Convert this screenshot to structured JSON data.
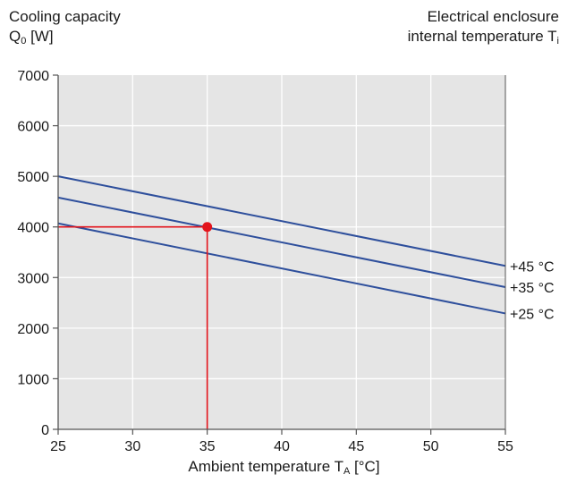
{
  "chart_data": {
    "type": "line",
    "ylabel_main": "Cooling capacity",
    "ylabel_sym": "Q",
    "ylabel_sub": "0",
    "ylabel_unit": " [W]",
    "legend_title_l1": "Electrical enclosure",
    "legend_title_l2": "internal temperature T",
    "legend_title_sub": "i",
    "xlabel_main": "Ambient temperature T",
    "xlabel_sub": "A",
    "xlabel_unit": " [°C]",
    "xlim": [
      25,
      55
    ],
    "ylim": [
      0,
      7000
    ],
    "xticks": [
      25,
      30,
      35,
      40,
      45,
      50,
      55
    ],
    "yticks": [
      0,
      1000,
      2000,
      3000,
      4000,
      5000,
      6000,
      7000
    ],
    "grid": true,
    "series": [
      {
        "name": "+45 °C",
        "x": [
          25,
          55
        ],
        "y": [
          5000,
          3230
        ]
      },
      {
        "name": "+35 °C",
        "x": [
          25,
          55
        ],
        "y": [
          4580,
          2810
        ]
      },
      {
        "name": "+25 °C",
        "x": [
          25,
          55
        ],
        "y": [
          4070,
          2290
        ]
      }
    ],
    "annotation": {
      "x": 35,
      "y": 4000
    },
    "colors": {
      "series": "#2e4f9c",
      "annotation": "#e3141b",
      "plot_bg": "#e5e5e5",
      "grid": "#ffffff",
      "axis": "#555555"
    }
  }
}
